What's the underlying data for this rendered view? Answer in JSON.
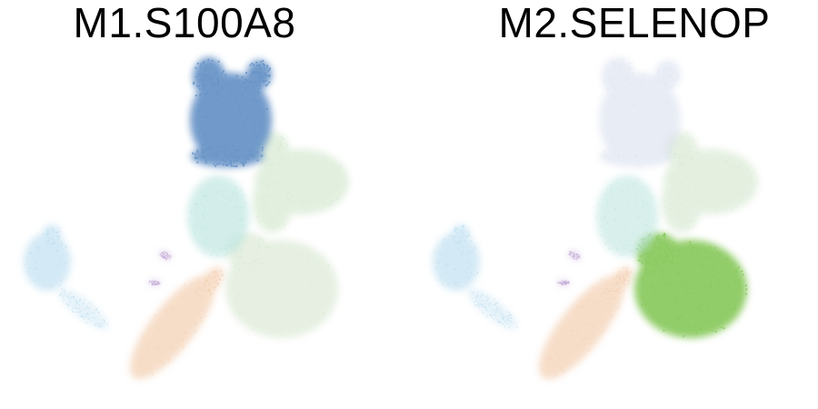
{
  "chart_data": [
    {
      "type": "scatter",
      "title": "M1.S100A8",
      "highlight_cluster": "top",
      "colors": {
        "top": "#6a95c8",
        "teal": "#b6e3dd",
        "green_upper": "#cfe5c9",
        "green_lower": "#d6e6cf",
        "left": "#b7dcef",
        "orange": "#f1c7a4",
        "purple": "#c2a7d6"
      }
    },
    {
      "type": "scatter",
      "title": "M2.SELENOP",
      "highlight_cluster": "green_lower",
      "colors": {
        "top": "#d9e0ee",
        "teal": "#bfe6e0",
        "green_upper": "#d3e6cd",
        "green_lower": "#8ccb62",
        "left": "#b7dcef",
        "orange": "#f1c7a4",
        "purple": "#c2a7d6"
      }
    }
  ]
}
